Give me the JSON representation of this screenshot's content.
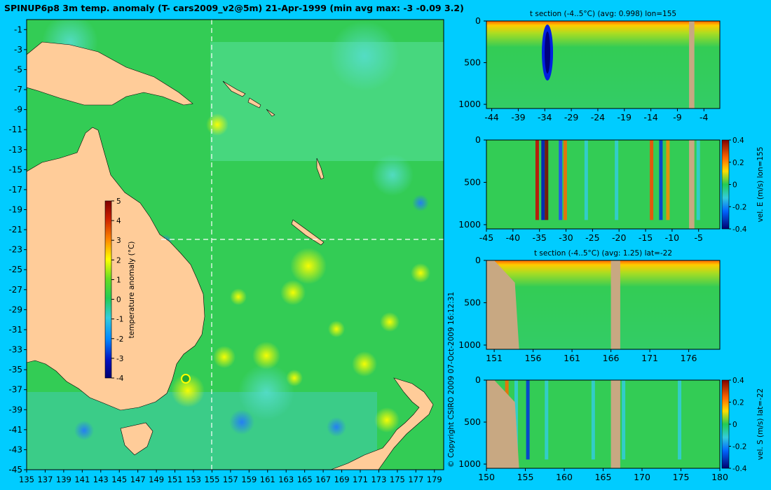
{
  "page": {
    "title": "SPINUP6p8 3m temp. anomaly (T- cars2009_v2@5m) 21-Apr-1999 (min avg max: -3 -0.09 3.2)",
    "copyright": "© Copyright CSIRO 2009   07-Oct-2009 16:12:31"
  },
  "colors": {
    "background": "#00ccff",
    "land": "#ffcc99",
    "section_land": "#c8a882",
    "colormap": [
      "#000080",
      "#0020e0",
      "#00a0ff",
      "#33ddaa",
      "#22cc44",
      "#44cc22",
      "#ffff00",
      "#ffbb00",
      "#ff5500",
      "#cc0000",
      "#800000"
    ]
  },
  "chart_data": [
    {
      "type": "heatmap",
      "id": "map",
      "title": "SPINUP6p8 3m temp. anomaly (T- cars2009_v2@5m) 21-Apr-1999 (min avg max: -3 -0.09 3.2)",
      "x_ticks": [
        "135",
        "137",
        "139",
        "141",
        "143",
        "145",
        "147",
        "149",
        "151",
        "153",
        "155",
        "157",
        "159",
        "161",
        "163",
        "165",
        "167",
        "169",
        "171",
        "173",
        "175",
        "177",
        "179"
      ],
      "y_ticks": [
        "-1",
        "-3",
        "-5",
        "-7",
        "-9",
        "-11",
        "-13",
        "-15",
        "-17",
        "-19",
        "-21",
        "-23",
        "-25",
        "-27",
        "-29",
        "-31",
        "-33",
        "-35",
        "-37",
        "-39",
        "-41",
        "-43",
        "-45"
      ],
      "xlim": [
        135,
        180
      ],
      "ylim": [
        -45,
        0
      ],
      "section_lines": {
        "lon": 155,
        "lat": -22
      },
      "colorbar": {
        "label": "temperature anomaly (°C)",
        "ticks": [
          "5",
          "4",
          "3",
          "2",
          "1",
          "0",
          "-1",
          "-2",
          "-3",
          "-4"
        ],
        "range": [
          -4,
          5
        ]
      }
    },
    {
      "type": "heatmap",
      "id": "tsec_lon",
      "title": "t section (-4..5°C) (avg: 0.998) lon=155",
      "x_ticks": [
        "-44",
        "-39",
        "-34",
        "-29",
        "-24",
        "-19",
        "-14",
        "-9",
        "-4"
      ],
      "y_ticks": [
        "0",
        "500",
        "1000"
      ],
      "xlim": [
        -45,
        -1
      ],
      "ylim": [
        1050,
        0
      ],
      "features": [
        {
          "kind": "anomaly",
          "x": -33.5,
          "value": -4
        },
        {
          "kind": "land",
          "x_range": [
            -6.8,
            -5.8
          ]
        }
      ]
    },
    {
      "type": "heatmap",
      "id": "vel_e",
      "title": "",
      "x_ticks": [
        "-45",
        "-40",
        "-35",
        "-30",
        "-25",
        "-20",
        "-15",
        "-10",
        "-5"
      ],
      "y_ticks": [
        "0",
        "500",
        "1000"
      ],
      "xlim": [
        -45,
        -1
      ],
      "ylim": [
        1050,
        0
      ],
      "colorbar": {
        "label": "vel. E (m/s) lon=155",
        "ticks": [
          "0.4",
          "0.2",
          "0",
          "-0.2",
          "-0.4"
        ]
      }
    },
    {
      "type": "heatmap",
      "id": "tsec_lat",
      "title": "t section (-4..5°C) (avg: 1.25) lat=-22",
      "x_ticks": [
        "151",
        "156",
        "161",
        "166",
        "171",
        "176"
      ],
      "y_ticks": [
        "0",
        "500",
        "1000"
      ],
      "xlim": [
        150,
        180
      ],
      "ylim": [
        1050,
        0
      ]
    },
    {
      "type": "heatmap",
      "id": "vel_s",
      "title": "",
      "x_ticks": [
        "150",
        "155",
        "160",
        "165",
        "170",
        "175",
        "180"
      ],
      "y_ticks": [
        "0",
        "500",
        "1000"
      ],
      "xlim": [
        150,
        180
      ],
      "ylim": [
        1050,
        0
      ],
      "colorbar": {
        "label": "vel. S (m/s) lat=-22",
        "ticks": [
          "0.4",
          "0.2",
          "0",
          "-0.2",
          "-0.4"
        ]
      }
    }
  ]
}
